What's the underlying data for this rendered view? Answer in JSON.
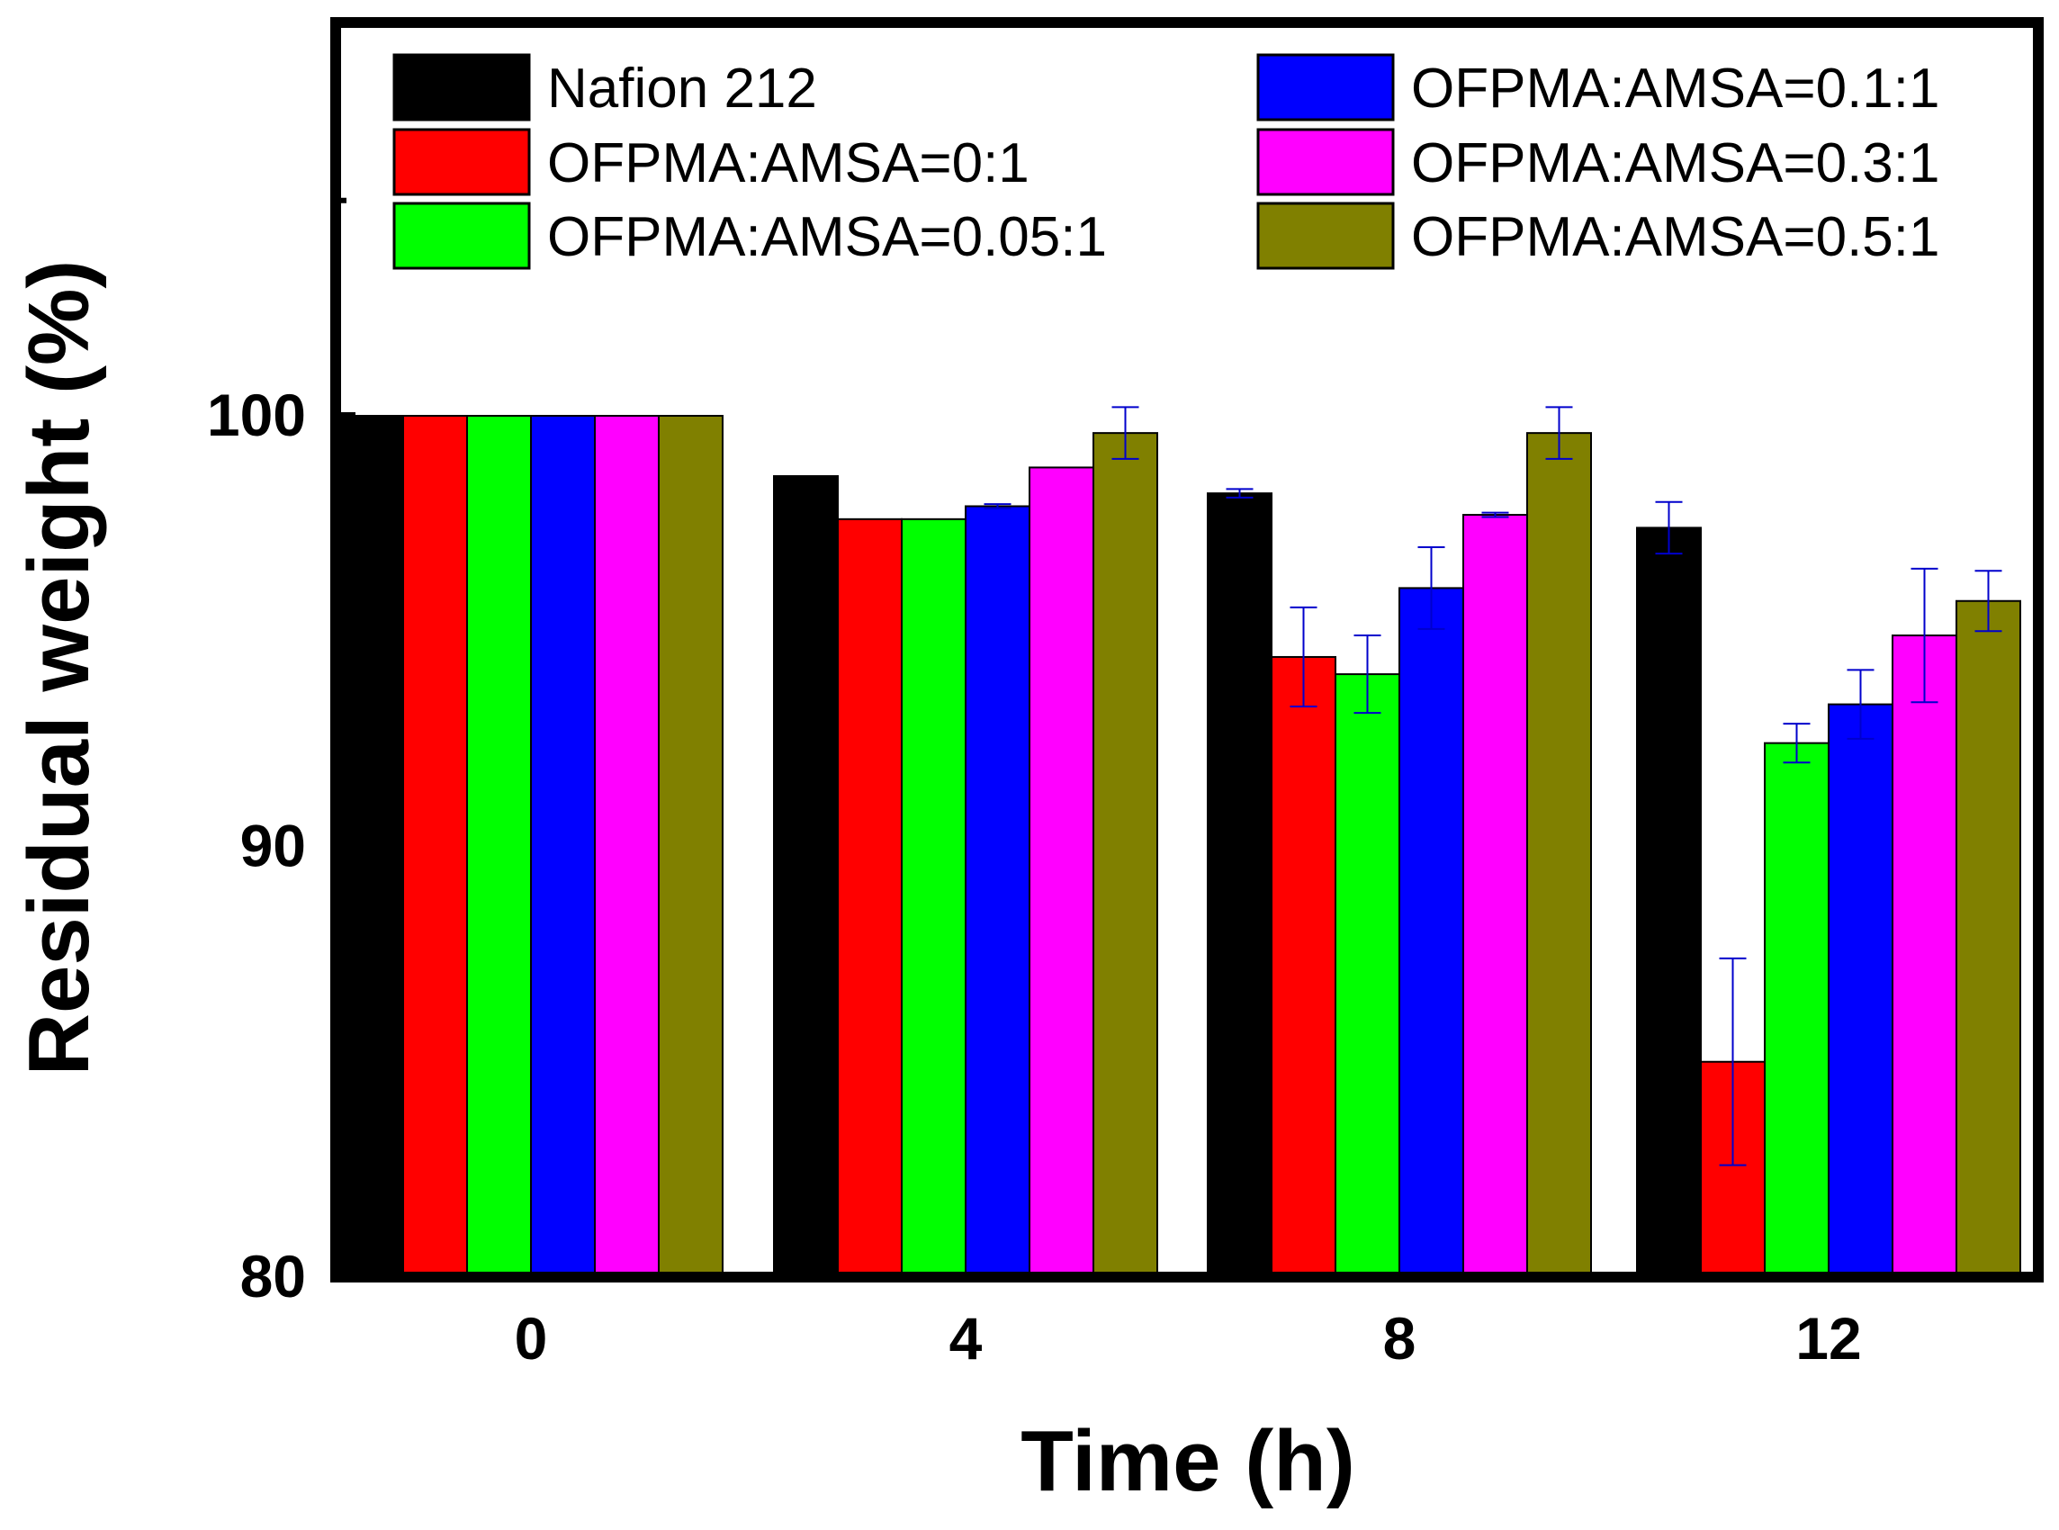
{
  "chart_data": {
    "type": "bar",
    "title": "",
    "xlabel": "Time (h)",
    "ylabel": "Residual weight (%)",
    "ylim": [
      80,
      110
    ],
    "yticks": [
      80,
      90,
      100
    ],
    "ytick_labels": [
      "80",
      "90",
      "100"
    ],
    "categories": [
      "0",
      "4",
      "8",
      "12"
    ],
    "legend_position": "top",
    "series": [
      {
        "name": "Nafion 212",
        "color": "#000000",
        "values": [
          100,
          98.6,
          98.2,
          97.4
        ],
        "errors": [
          0,
          0,
          0.1,
          0.6
        ]
      },
      {
        "name": "OFPMA:AMSA=0:1",
        "color": "#ff0000",
        "values": [
          100,
          97.6,
          94.4,
          85.0
        ],
        "errors": [
          0,
          0,
          1.15,
          2.4
        ]
      },
      {
        "name": "OFPMA:AMSA=0.05:1",
        "color": "#00ff00",
        "values": [
          100,
          97.6,
          94.0,
          92.4
        ],
        "errors": [
          0,
          0,
          0.9,
          0.45
        ]
      },
      {
        "name": "OFPMA:AMSA=0.1:1",
        "color": "#0000ff",
        "values": [
          100,
          97.9,
          96.0,
          93.3
        ],
        "errors": [
          0,
          0.05,
          0.95,
          0.8
        ]
      },
      {
        "name": "OFPMA:AMSA=0.3:1",
        "color": "#ff00ff",
        "values": [
          100,
          98.8,
          97.7,
          94.9
        ],
        "errors": [
          0,
          0,
          0.05,
          1.55
        ]
      },
      {
        "name": "OFPMA:AMSA=0.5:1",
        "color": "#808000",
        "values": [
          100,
          99.6,
          99.6,
          95.7
        ],
        "errors": [
          0,
          0.6,
          0.6,
          0.7
        ]
      }
    ],
    "error_bar_color": "#0000cc"
  }
}
